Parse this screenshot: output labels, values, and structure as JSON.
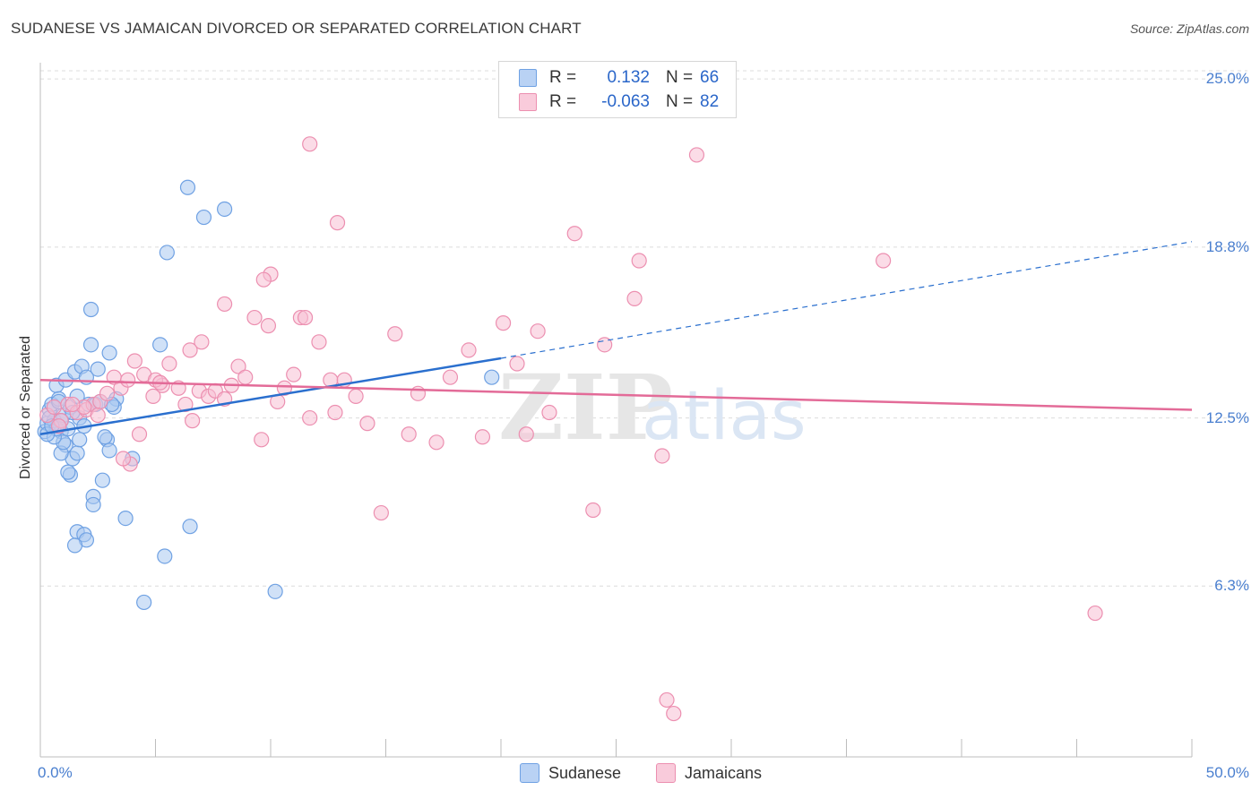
{
  "chart_data": {
    "type": "scatter",
    "title": "SUDANESE VS JAMAICAN DIVORCED OR SEPARATED CORRELATION CHART",
    "source": "Source: ZipAtlas.com",
    "ylabel": "Divorced or Separated",
    "xlabel": "",
    "xlim": [
      0,
      50
    ],
    "ylim": [
      0,
      25.6
    ],
    "y_ticks": [
      {
        "value": 6.3,
        "label": "6.3%"
      },
      {
        "value": 12.5,
        "label": "12.5%"
      },
      {
        "value": 18.8,
        "label": "18.8%"
      },
      {
        "value": 25.0,
        "label": "25.0%"
      }
    ],
    "x_tick_labels": {
      "min": "0.0%",
      "max": "50.0%"
    },
    "grid": true,
    "watermark": "ZIPatlas",
    "legend_position": "top-center",
    "series": [
      {
        "name": "Sudanese",
        "legend_label": "Sudanese",
        "r_label": "R =",
        "r_value": "0.132",
        "n_label": "N =",
        "n_value": "66",
        "color": "#6fa1e3",
        "fill": "#aac8f1",
        "line_color": "#2a6fce",
        "trend": {
          "x0": 0,
          "y0": 11.9,
          "x1": 20,
          "y1": 14.7,
          "dash_to_x": 50,
          "dash_to_y": 19.0
        },
        "points": [
          [
            0.2,
            12.0
          ],
          [
            0.3,
            12.3
          ],
          [
            0.4,
            12.8
          ],
          [
            0.5,
            13.0
          ],
          [
            0.6,
            12.4
          ],
          [
            0.7,
            13.7
          ],
          [
            0.8,
            13.2
          ],
          [
            0.9,
            12.0
          ],
          [
            1.0,
            12.6
          ],
          [
            1.1,
            13.9
          ],
          [
            1.2,
            12.1
          ],
          [
            1.3,
            12.9
          ],
          [
            1.5,
            14.2
          ],
          [
            1.6,
            13.3
          ],
          [
            1.7,
            12.5
          ],
          [
            1.8,
            14.4
          ],
          [
            2.0,
            14.0
          ],
          [
            2.1,
            13.0
          ],
          [
            2.2,
            15.2
          ],
          [
            2.4,
            13.0
          ],
          [
            2.5,
            14.3
          ],
          [
            2.6,
            13.1
          ],
          [
            3.0,
            14.9
          ],
          [
            3.3,
            13.2
          ],
          [
            3.2,
            12.9
          ],
          [
            1.1,
            11.5
          ],
          [
            1.4,
            11.0
          ],
          [
            1.3,
            10.4
          ],
          [
            2.7,
            10.2
          ],
          [
            2.3,
            9.6
          ],
          [
            2.3,
            9.3
          ],
          [
            1.6,
            8.3
          ],
          [
            1.9,
            8.2
          ],
          [
            2.0,
            8.0
          ],
          [
            1.5,
            7.8
          ],
          [
            3.7,
            8.8
          ],
          [
            5.2,
            15.2
          ],
          [
            5.5,
            18.6
          ],
          [
            5.4,
            7.4
          ],
          [
            6.4,
            21.0
          ],
          [
            7.1,
            19.9
          ],
          [
            8.0,
            20.2
          ],
          [
            6.5,
            8.5
          ],
          [
            4.5,
            5.7
          ],
          [
            10.2,
            6.1
          ],
          [
            19.6,
            14.0
          ],
          [
            1.2,
            10.5
          ],
          [
            4.0,
            11.0
          ],
          [
            2.9,
            11.7
          ],
          [
            3.0,
            11.3
          ],
          [
            0.9,
            11.2
          ],
          [
            1.0,
            11.6
          ],
          [
            0.6,
            11.8
          ],
          [
            0.7,
            12.1
          ],
          [
            0.4,
            12.5
          ],
          [
            1.6,
            11.2
          ],
          [
            2.8,
            11.8
          ],
          [
            1.9,
            12.2
          ],
          [
            0.8,
            13.1
          ],
          [
            1.4,
            12.7
          ],
          [
            3.1,
            13.0
          ],
          [
            0.3,
            11.9
          ],
          [
            0.9,
            12.4
          ],
          [
            1.7,
            11.7
          ],
          [
            2.2,
            16.5
          ],
          [
            0.5,
            12.2
          ]
        ]
      },
      {
        "name": "Jamaicans",
        "legend_label": "Jamaicans",
        "r_label": "R =",
        "r_value": "-0.063",
        "n_label": "N =",
        "n_value": "82",
        "color": "#ec8fb0",
        "fill": "#f7c0d3",
        "line_color": "#e36b98",
        "trend": {
          "x0": 0,
          "y0": 13.9,
          "x1": 50,
          "y1": 12.8
        },
        "points": [
          [
            0.3,
            12.6
          ],
          [
            0.6,
            12.9
          ],
          [
            0.9,
            12.4
          ],
          [
            1.2,
            13.0
          ],
          [
            1.6,
            12.7
          ],
          [
            2.0,
            12.8
          ],
          [
            2.3,
            13.0
          ],
          [
            2.6,
            13.1
          ],
          [
            2.9,
            13.4
          ],
          [
            3.2,
            14.0
          ],
          [
            3.5,
            13.6
          ],
          [
            3.8,
            13.9
          ],
          [
            4.1,
            14.6
          ],
          [
            4.5,
            14.1
          ],
          [
            4.9,
            13.3
          ],
          [
            5.3,
            13.7
          ],
          [
            5.6,
            14.5
          ],
          [
            6.0,
            13.6
          ],
          [
            6.3,
            13.0
          ],
          [
            6.6,
            12.4
          ],
          [
            6.9,
            13.5
          ],
          [
            7.3,
            13.3
          ],
          [
            7.6,
            13.5
          ],
          [
            8.0,
            13.2
          ],
          [
            8.3,
            13.7
          ],
          [
            8.6,
            14.4
          ],
          [
            8.9,
            14.0
          ],
          [
            9.3,
            16.2
          ],
          [
            9.6,
            11.7
          ],
          [
            9.9,
            15.9
          ],
          [
            10.3,
            13.1
          ],
          [
            10.6,
            13.6
          ],
          [
            11.0,
            14.1
          ],
          [
            11.3,
            16.2
          ],
          [
            11.7,
            12.5
          ],
          [
            12.1,
            15.3
          ],
          [
            12.6,
            13.9
          ],
          [
            13.2,
            13.9
          ],
          [
            13.7,
            13.3
          ],
          [
            14.2,
            12.3
          ],
          [
            14.8,
            9.0
          ],
          [
            15.4,
            15.6
          ],
          [
            16.0,
            11.9
          ],
          [
            16.4,
            13.4
          ],
          [
            17.2,
            11.6
          ],
          [
            17.8,
            14.0
          ],
          [
            18.6,
            15.0
          ],
          [
            19.2,
            11.8
          ],
          [
            20.1,
            16.0
          ],
          [
            20.7,
            14.5
          ],
          [
            21.1,
            11.9
          ],
          [
            21.6,
            15.7
          ],
          [
            22.1,
            12.7
          ],
          [
            23.2,
            19.3
          ],
          [
            24.0,
            9.1
          ],
          [
            26.0,
            18.3
          ],
          [
            24.5,
            15.2
          ],
          [
            25.8,
            16.9
          ],
          [
            27.0,
            11.1
          ],
          [
            28.5,
            22.2
          ],
          [
            27.5,
            1.6
          ],
          [
            27.2,
            2.1
          ],
          [
            36.6,
            18.3
          ],
          [
            45.8,
            5.3
          ],
          [
            11.7,
            22.6
          ],
          [
            12.9,
            19.7
          ],
          [
            10.0,
            17.8
          ],
          [
            9.7,
            17.6
          ],
          [
            8.0,
            16.7
          ],
          [
            7.0,
            15.3
          ],
          [
            6.5,
            15.0
          ],
          [
            5.0,
            13.9
          ],
          [
            4.3,
            11.9
          ],
          [
            3.9,
            10.8
          ],
          [
            3.6,
            11.0
          ],
          [
            2.5,
            12.6
          ],
          [
            1.9,
            12.9
          ],
          [
            1.4,
            13.0
          ],
          [
            0.8,
            12.2
          ],
          [
            5.2,
            13.8
          ],
          [
            11.5,
            16.2
          ],
          [
            12.8,
            12.7
          ]
        ]
      }
    ]
  }
}
